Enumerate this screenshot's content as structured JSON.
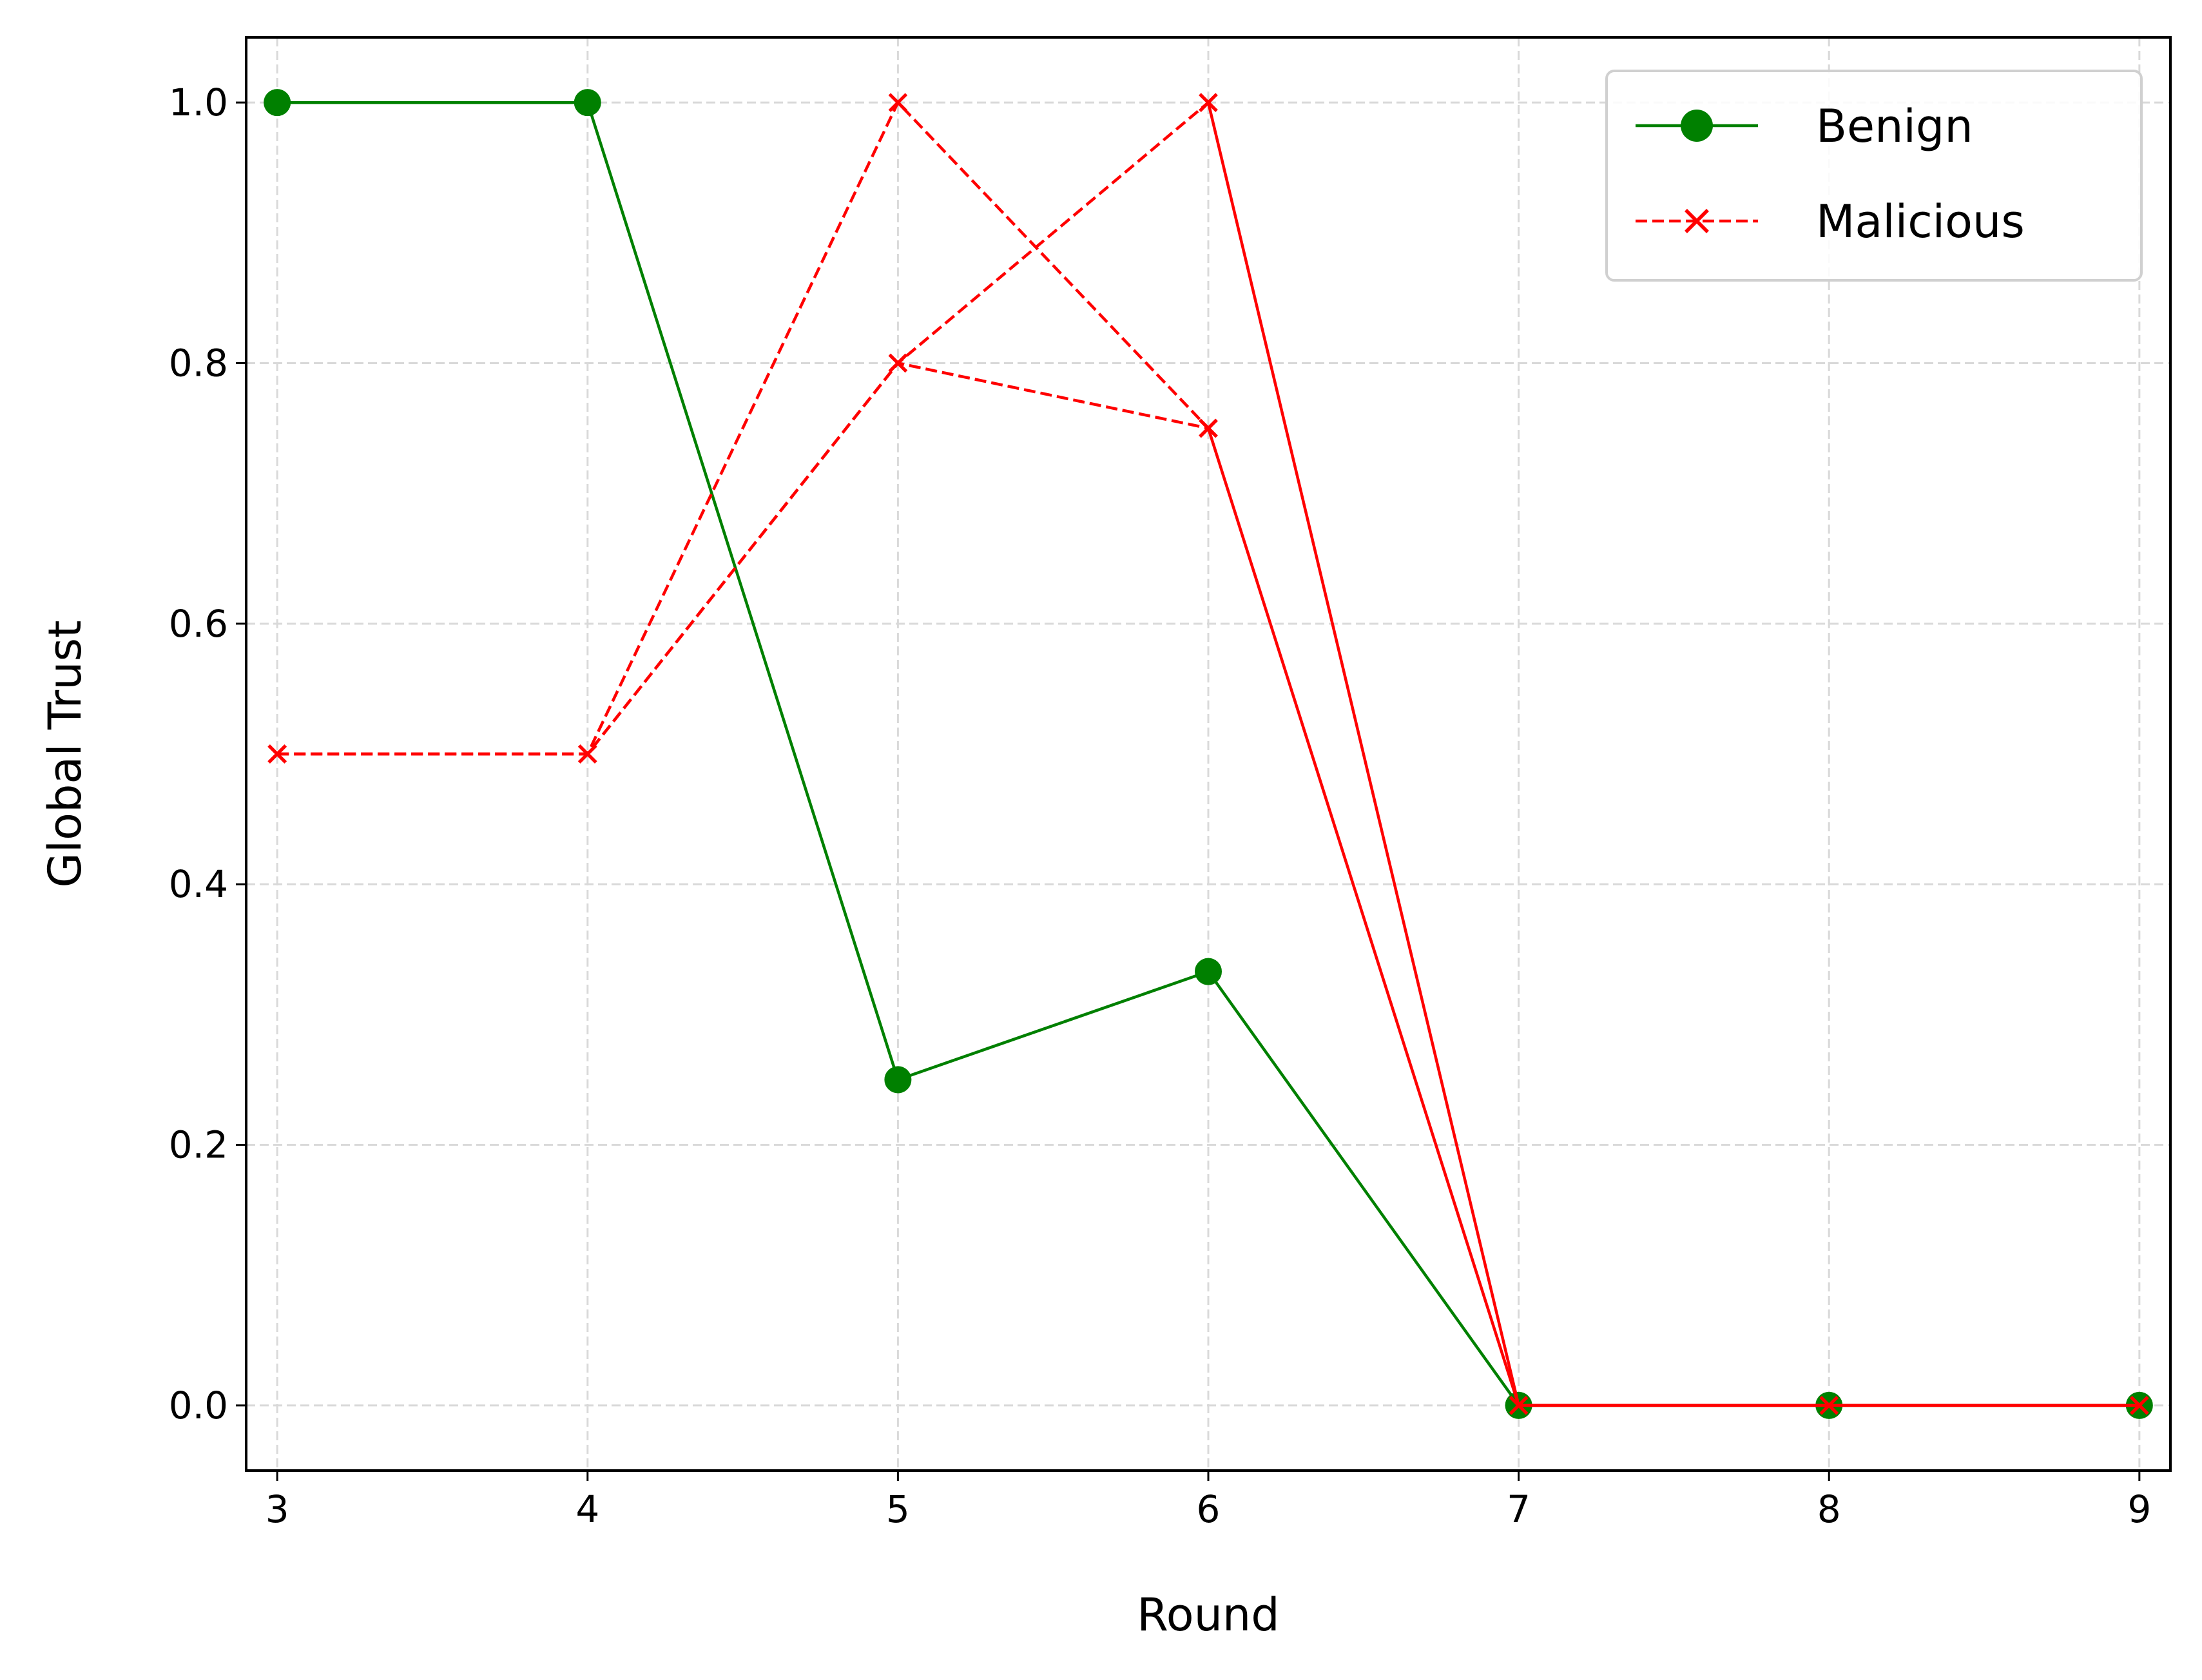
{
  "chart_data": {
    "type": "line",
    "title": "",
    "xlabel": "Round",
    "ylabel": "Global Trust",
    "xlim": [
      2.9,
      9.1
    ],
    "ylim": [
      -0.05,
      1.05
    ],
    "xticks": [
      3,
      4,
      5,
      6,
      7,
      8,
      9
    ],
    "yticks": [
      0.0,
      0.2,
      0.4,
      0.6,
      0.8,
      1.0
    ],
    "xtick_labels": [
      "3",
      "4",
      "5",
      "6",
      "7",
      "8",
      "9"
    ],
    "ytick_labels": [
      "0.0",
      "0.2",
      "0.4",
      "0.6",
      "0.8",
      "1.0"
    ],
    "grid": true,
    "legend_position": "top-right",
    "legend": [
      {
        "label": "Benign",
        "color": "#008000",
        "marker": "circle",
        "linestyle": "solid"
      },
      {
        "label": "Malicious",
        "color": "#ff0000",
        "marker": "x",
        "linestyle": "dashed"
      }
    ],
    "series": [
      {
        "group": "benign",
        "color": "#008000",
        "marker": "circle",
        "linestyle": "solid",
        "x": [
          3,
          4,
          5,
          6,
          7,
          8,
          9
        ],
        "y": [
          1.0,
          1.0,
          0.25,
          0.333,
          0.0,
          0.0,
          0.0
        ]
      },
      {
        "group": "malicious",
        "color": "#ff0000",
        "marker": "x",
        "linestyle": "dashed",
        "x": [
          3,
          4,
          5,
          6
        ],
        "y": [
          0.5,
          0.5,
          1.0,
          0.75
        ]
      },
      {
        "group": "malicious",
        "color": "#ff0000",
        "marker": "x",
        "linestyle": "dashed",
        "x": [
          3,
          4,
          5,
          6
        ],
        "y": [
          0.5,
          0.5,
          0.8,
          1.0
        ]
      },
      {
        "group": "malicious",
        "color": "#ff0000",
        "marker": "x",
        "linestyle": "dashed",
        "x": [
          3,
          4,
          5,
          6
        ],
        "y": [
          0.5,
          0.5,
          0.8,
          0.75
        ]
      },
      {
        "group": "malicious",
        "color": "#ff0000",
        "marker": "x",
        "linestyle": "solid",
        "x": [
          6,
          7,
          8,
          9
        ],
        "y": [
          0.75,
          0.0,
          0.0,
          0.0
        ]
      },
      {
        "group": "malicious",
        "color": "#ff0000",
        "marker": "x",
        "linestyle": "solid",
        "x": [
          6,
          7,
          8,
          9
        ],
        "y": [
          1.0,
          0.0,
          0.0,
          0.0
        ]
      }
    ]
  }
}
